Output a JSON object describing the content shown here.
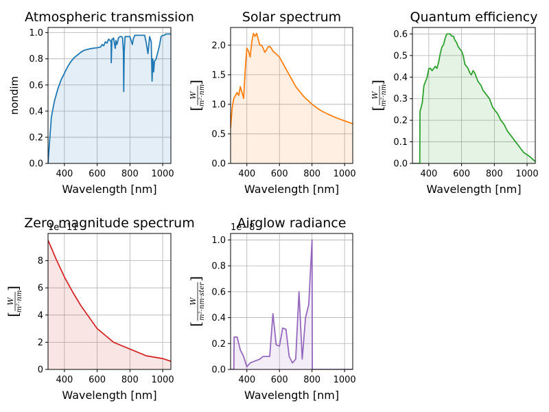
{
  "chart_data": [
    {
      "type": "area",
      "title": "Atmospheric transmission",
      "xlabel": "Wavelength [nm]",
      "ylabel": "nondim",
      "ylabel_is_math": false,
      "color": "#1f77b4",
      "xlim": [
        300,
        1050
      ],
      "ylim": [
        0,
        1.04
      ],
      "xticks": [
        400,
        600,
        800,
        1000
      ],
      "yticks": [
        0,
        0.2,
        0.4,
        0.6,
        0.8,
        1.0
      ],
      "yticklabels": [
        "0.0",
        "0.2",
        "0.4",
        "0.6",
        "0.8",
        "1.0"
      ],
      "offset": "",
      "grid": true,
      "x": [
        300,
        310,
        320,
        330,
        340,
        360,
        380,
        400,
        420,
        440,
        460,
        480,
        500,
        520,
        540,
        560,
        580,
        600,
        620,
        630,
        640,
        650,
        660,
        670,
        680,
        685,
        686,
        690,
        695,
        700,
        710,
        715,
        720,
        725,
        730,
        740,
        750,
        755,
        760,
        762,
        765,
        770,
        780,
        800,
        810,
        815,
        820,
        830,
        840,
        850,
        870,
        890,
        900,
        910,
        920,
        930,
        935,
        940,
        945,
        950,
        960,
        970,
        980,
        990,
        1000,
        1010,
        1020,
        1030,
        1040,
        1050
      ],
      "y": [
        0.0,
        0.18,
        0.35,
        0.42,
        0.48,
        0.57,
        0.64,
        0.69,
        0.74,
        0.78,
        0.81,
        0.83,
        0.85,
        0.865,
        0.872,
        0.878,
        0.882,
        0.885,
        0.89,
        0.91,
        0.9,
        0.93,
        0.92,
        0.95,
        0.94,
        0.93,
        0.77,
        0.95,
        0.95,
        0.96,
        0.88,
        0.94,
        0.91,
        0.93,
        0.96,
        0.97,
        0.97,
        0.96,
        0.86,
        0.55,
        0.85,
        0.97,
        0.97,
        0.97,
        0.93,
        0.91,
        0.95,
        0.98,
        0.98,
        0.98,
        0.98,
        0.98,
        0.92,
        0.84,
        0.97,
        0.93,
        0.63,
        0.8,
        0.7,
        0.78,
        0.8,
        0.85,
        0.9,
        0.97,
        0.98,
        0.98,
        0.99,
        0.99,
        0.99,
        0.99
      ]
    },
    {
      "type": "area",
      "title": "Solar spectrum",
      "xlabel": "Wavelength [nm]",
      "ylabel": "",
      "ylabel_is_math": true,
      "ylabel_math_num": "W",
      "ylabel_math_den": "m²·nm",
      "color": "#ff7f0e",
      "xlim": [
        300,
        1050
      ],
      "ylim": [
        0,
        2.3
      ],
      "xticks": [
        400,
        600,
        800,
        1000
      ],
      "yticks": [
        0,
        0.5,
        1.0,
        1.5,
        2.0
      ],
      "yticklabels": [
        "0.0",
        "0.5",
        "1.0",
        "1.5",
        "2.0"
      ],
      "offset": "",
      "grid": true,
      "x": [
        300,
        310,
        320,
        330,
        340,
        350,
        360,
        370,
        380,
        390,
        400,
        410,
        420,
        430,
        440,
        450,
        460,
        470,
        480,
        490,
        500,
        510,
        520,
        530,
        540,
        550,
        560,
        580,
        600,
        620,
        640,
        660,
        680,
        700,
        750,
        800,
        850,
        900,
        950,
        1000,
        1050
      ],
      "y": [
        0.6,
        0.95,
        1.1,
        1.15,
        1.2,
        1.15,
        1.3,
        1.2,
        1.1,
        1.6,
        1.95,
        1.9,
        1.8,
        2.05,
        2.2,
        2.15,
        2.2,
        2.1,
        2.0,
        2.0,
        1.95,
        1.88,
        1.92,
        1.97,
        1.98,
        1.95,
        1.9,
        1.85,
        1.8,
        1.7,
        1.6,
        1.5,
        1.4,
        1.3,
        1.13,
        1.0,
        0.9,
        0.83,
        0.77,
        0.72,
        0.67
      ]
    },
    {
      "type": "area",
      "title": "Quantum efficiency",
      "xlabel": "Wavelength [nm]",
      "ylabel": "",
      "ylabel_is_math": true,
      "ylabel_math_num": "W",
      "ylabel_math_den": "m²·nm",
      "color": "#2ca02c",
      "xlim": [
        300,
        1050
      ],
      "ylim": [
        0,
        0.63
      ],
      "xticks": [
        400,
        600,
        800,
        1000
      ],
      "yticks": [
        0,
        0.1,
        0.2,
        0.3,
        0.4,
        0.5,
        0.6
      ],
      "yticklabels": [
        "0.0",
        "0.1",
        "0.2",
        "0.3",
        "0.4",
        "0.5",
        "0.6"
      ],
      "offset": "",
      "grid": true,
      "x": [
        300,
        345,
        346,
        360,
        370,
        380,
        390,
        400,
        410,
        420,
        430,
        440,
        450,
        460,
        470,
        480,
        490,
        500,
        510,
        520,
        530,
        540,
        550,
        560,
        570,
        580,
        590,
        600,
        610,
        620,
        630,
        640,
        650,
        660,
        670,
        680,
        690,
        700,
        710,
        720,
        730,
        740,
        750,
        760,
        770,
        780,
        790,
        800,
        820,
        840,
        860,
        880,
        900,
        920,
        940,
        960,
        980,
        1000,
        1020,
        1040,
        1050
      ],
      "y": [
        0,
        0,
        0.24,
        0.28,
        0.36,
        0.38,
        0.4,
        0.44,
        0.44,
        0.43,
        0.44,
        0.45,
        0.44,
        0.47,
        0.51,
        0.54,
        0.55,
        0.58,
        0.6,
        0.6,
        0.6,
        0.59,
        0.59,
        0.57,
        0.56,
        0.54,
        0.53,
        0.52,
        0.5,
        0.46,
        0.45,
        0.44,
        0.42,
        0.41,
        0.43,
        0.42,
        0.4,
        0.38,
        0.37,
        0.36,
        0.34,
        0.33,
        0.32,
        0.31,
        0.3,
        0.28,
        0.26,
        0.25,
        0.23,
        0.2,
        0.18,
        0.15,
        0.13,
        0.11,
        0.09,
        0.07,
        0.05,
        0.04,
        0.03,
        0.015,
        0.01
      ]
    },
    {
      "type": "area",
      "title": "Zero magnitude spectrum",
      "xlabel": "Wavelength [nm]",
      "ylabel": "",
      "ylabel_is_math": true,
      "ylabel_math_num": "W",
      "ylabel_math_den": "m²·nm",
      "color": "#d62728",
      "xlim": [
        300,
        1050
      ],
      "ylim": [
        0,
        10
      ],
      "xticks": [
        400,
        600,
        800,
        1000
      ],
      "yticks": [
        0,
        2,
        4,
        6,
        8
      ],
      "yticklabels": [
        "0",
        "2",
        "4",
        "6",
        "8"
      ],
      "offset": "1e−11",
      "grid": true,
      "x": [
        300,
        350,
        400,
        450,
        500,
        600,
        700,
        800,
        900,
        1000,
        1050
      ],
      "y": [
        9.5,
        8.1,
        6.8,
        5.7,
        4.7,
        3.0,
        2.0,
        1.5,
        1.0,
        0.8,
        0.6
      ]
    },
    {
      "type": "area",
      "title": "Airglow radiance",
      "xlabel": "Wavelength [nm]",
      "ylabel": "",
      "ylabel_is_math": true,
      "ylabel_math_num": "W",
      "ylabel_math_den": "m²·nm·ster",
      "color": "#9467bd",
      "xlim": [
        300,
        1050
      ],
      "ylim": [
        0,
        1.05
      ],
      "xticks": [
        400,
        600,
        800,
        1000
      ],
      "yticks": [
        0,
        0.2,
        0.4,
        0.6,
        0.8,
        1.0
      ],
      "yticklabels": [
        "0.0",
        "0.2",
        "0.4",
        "0.6",
        "0.8",
        "1.0"
      ],
      "offset": "1e−8",
      "grid": true,
      "x": [
        300,
        320,
        322,
        330,
        340,
        350,
        360,
        380,
        400,
        420,
        440,
        460,
        480,
        500,
        520,
        540,
        560,
        580,
        600,
        620,
        640,
        660,
        680,
        700,
        720,
        740,
        760,
        780,
        800,
        802,
        1050
      ],
      "y": [
        0,
        0,
        0.25,
        0.25,
        0.25,
        0.2,
        0.15,
        0.1,
        0.02,
        0.05,
        0.06,
        0.07,
        0.08,
        0.1,
        0.1,
        0.1,
        0.43,
        0.19,
        0.18,
        0.32,
        0.31,
        0.1,
        0.05,
        0.08,
        0.6,
        0.08,
        0.4,
        0.5,
        1.0,
        0.0,
        0.0
      ]
    }
  ]
}
